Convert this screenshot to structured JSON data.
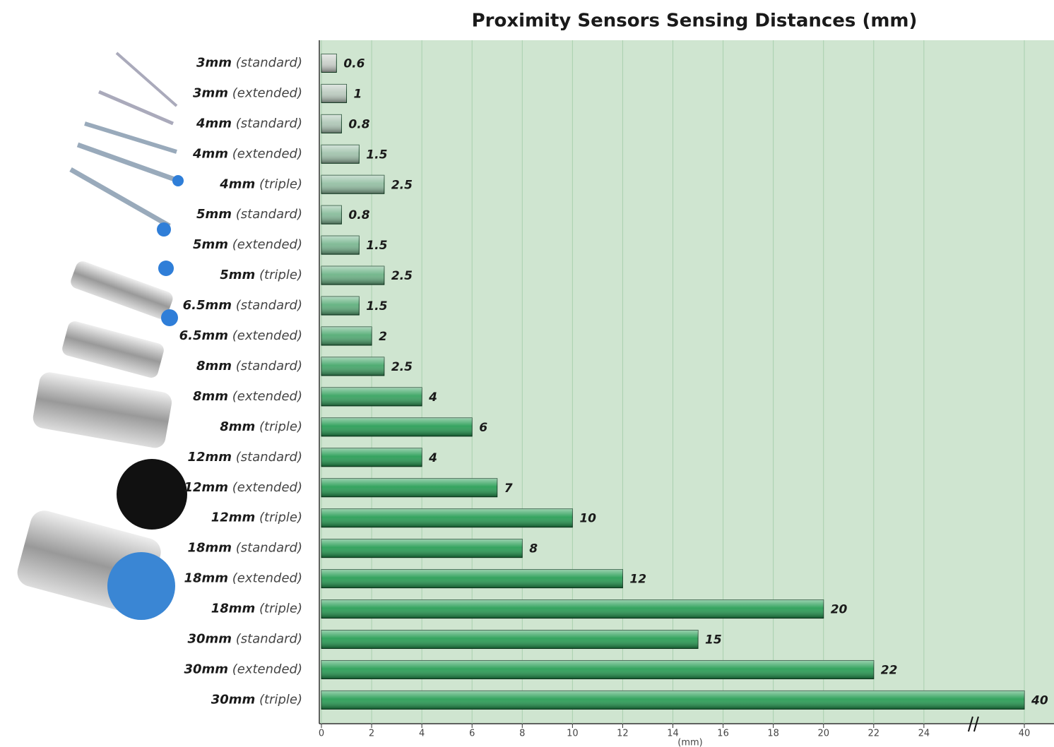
{
  "chart_data": {
    "type": "bar",
    "orientation": "horizontal",
    "title": "Proximity Sensors Sensing Distances (mm)",
    "xlabel": "(mm)",
    "categories": [
      "3mm (standard)",
      "3mm (extended)",
      "4mm (standard)",
      "4mm (extended)",
      "4mm (triple)",
      "5mm (standard)",
      "5mm (extended)",
      "5mm (triple)",
      "6.5mm (standard)",
      "6.5mm (extended)",
      "8mm (standard)",
      "8mm (extended)",
      "8mm (triple)",
      "12mm (standard)",
      "12mm (extended)",
      "12mm (triple)",
      "18mm (standard)",
      "18mm (extended)",
      "18mm (triple)",
      "30mm (standard)",
      "30mm (extended)",
      "30mm (triple)"
    ],
    "values": [
      0.6,
      1,
      0.8,
      1.5,
      2.5,
      0.8,
      1.5,
      2.5,
      1.5,
      2,
      2.5,
      4,
      6,
      4,
      7,
      10,
      8,
      12,
      20,
      15,
      22,
      40
    ],
    "color": "#1f9a4e",
    "xlim": [
      0,
      40
    ],
    "xticks": [
      0,
      2,
      4,
      6,
      8,
      10,
      12,
      14,
      16,
      18,
      20,
      22,
      24,
      40
    ],
    "axis_break": [
      26,
      38
    ],
    "grid": true
  }
}
